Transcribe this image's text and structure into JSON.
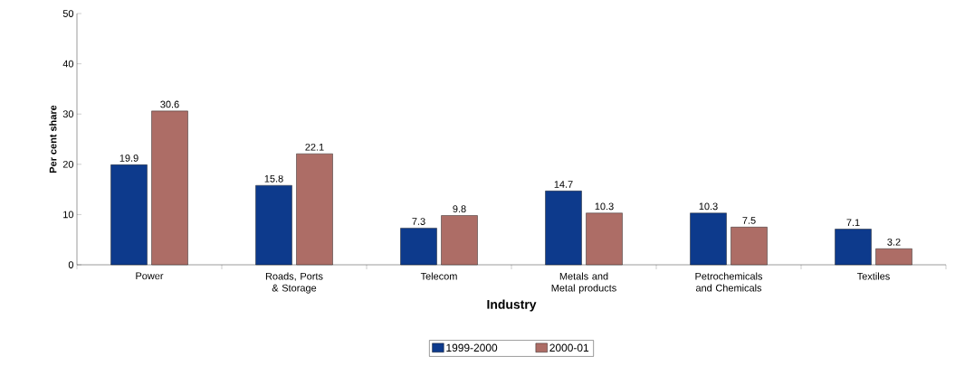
{
  "chart_data": {
    "type": "bar",
    "xlabel": "Industry",
    "ylabel": "Per cent share",
    "categories": [
      "Power",
      "Roads, Ports & Storage",
      "Telecom",
      "Metals and Metal products",
      "Petrochemicals and Chemicals",
      "Textiles"
    ],
    "series": [
      {
        "name": "1999-2000",
        "color": "#0d3a8c",
        "values": [
          19.9,
          15.8,
          7.3,
          14.7,
          10.3,
          7.1
        ]
      },
      {
        "name": "2000-01",
        "color": "#ad6d66",
        "values": [
          30.6,
          22.1,
          9.8,
          10.3,
          7.5,
          3.2
        ]
      }
    ],
    "ylim": [
      0,
      50
    ],
    "yticks": [
      0,
      10,
      20,
      30,
      40,
      50
    ],
    "data_labels": true,
    "legend": "bottom",
    "grid": false
  }
}
